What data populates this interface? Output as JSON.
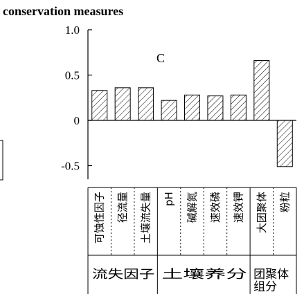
{
  "chart_data": {
    "type": "bar",
    "title": "conservation measures",
    "panel_label": "C",
    "ylim": [
      -0.65,
      1.0
    ],
    "yticks": [
      {
        "value": 1.0,
        "label": "1.0"
      },
      {
        "value": 0.5,
        "label": "0.5"
      },
      {
        "value": 0,
        "label": "0"
      },
      {
        "value": -0.5,
        "label": "-0.5"
      }
    ],
    "categories": [
      "可蚀性因子",
      "径流量",
      "土壤流失量",
      "pH",
      "碱解氮",
      "速效磷",
      "速效钾",
      "大团聚体",
      "粉粒"
    ],
    "values": [
      0.33,
      0.36,
      0.36,
      0.22,
      0.28,
      0.27,
      0.28,
      0.66,
      -0.51
    ],
    "groups": [
      {
        "label": "流失因子",
        "count": 3
      },
      {
        "label": "土壤养分",
        "count": 4
      },
      {
        "label": "团聚体组分",
        "count": 2
      }
    ],
    "bar_fill": "hatched",
    "grid": false
  }
}
